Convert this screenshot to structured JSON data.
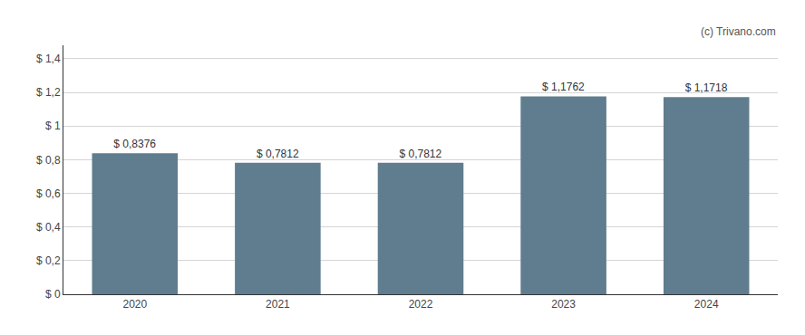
{
  "chart_data": {
    "type": "bar",
    "categories": [
      "2020",
      "2021",
      "2022",
      "2023",
      "2024"
    ],
    "values": [
      0.8376,
      0.7812,
      0.7812,
      1.1762,
      1.1718
    ],
    "value_labels": [
      "$ 0,8376",
      "$ 0,7812",
      "$ 0,7812",
      "$ 1,1762",
      "$ 1,1718"
    ],
    "data_labels": true,
    "color": "#5f7d8e",
    "ylim": [
      0,
      1.48
    ],
    "yticks": [
      {
        "value": 0,
        "label": "$ 0"
      },
      {
        "value": 0.2,
        "label": "$ 0,2"
      },
      {
        "value": 0.4,
        "label": "$ 0,4"
      },
      {
        "value": 0.6,
        "label": "$ 0,6"
      },
      {
        "value": 0.8,
        "label": "$ 0,8"
      },
      {
        "value": 1.0,
        "label": "$ 1"
      },
      {
        "value": 1.2,
        "label": "$ 1,2"
      },
      {
        "value": 1.4,
        "label": "$ 1,4"
      }
    ],
    "grid": true,
    "annotations": [
      "(c) Trivano.com"
    ]
  }
}
